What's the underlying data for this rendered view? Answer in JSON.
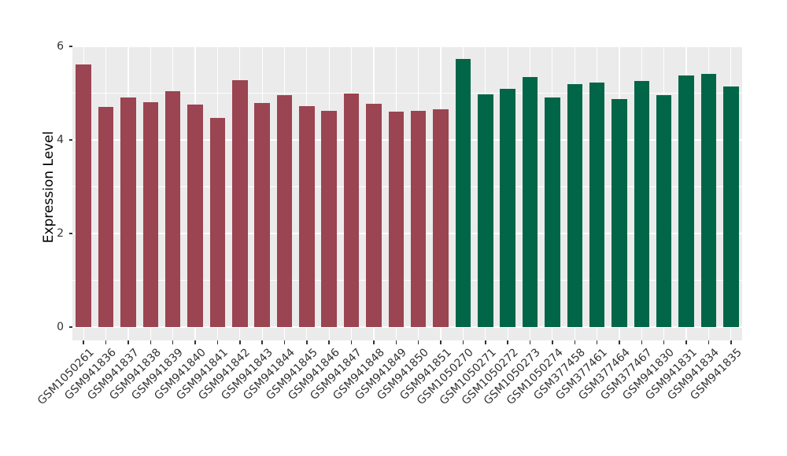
{
  "colors": {
    "background": "#FFFFFF",
    "panel_background": "#EBEBEB",
    "gridline": "#FFFFFF",
    "tick_mark": "#333333",
    "tick_label_color": "#333333",
    "axis_title_color": "#000000",
    "group_colors": {
      "red": "#9B4452",
      "green": "#016648"
    }
  },
  "chart_data": {
    "type": "bar",
    "title": "",
    "xlabel": "",
    "ylabel": "Expression Level",
    "ylim": [
      0,
      6
    ],
    "yticks": [
      0,
      2,
      4,
      6
    ],
    "yticks_minor": [
      1,
      3,
      5
    ],
    "grid": true,
    "legend_position": "none",
    "x_label_rotation_deg": 45,
    "categories": [
      "GSM1050261",
      "GSM941836",
      "GSM941837",
      "GSM941838",
      "GSM941839",
      "GSM941840",
      "GSM941841",
      "GSM941842",
      "GSM941843",
      "GSM941844",
      "GSM941845",
      "GSM941846",
      "GSM941847",
      "GSM941848",
      "GSM941849",
      "GSM941850",
      "GSM941851",
      "GSM1050270",
      "GSM1050271",
      "GSM1050272",
      "GSM1050273",
      "GSM1050274",
      "GSM377458",
      "GSM377461",
      "GSM377464",
      "GSM377467",
      "GSM941830",
      "GSM941831",
      "GSM941834",
      "GSM941835"
    ],
    "bars": [
      {
        "label": "GSM1050261",
        "value": 5.61,
        "group": "red"
      },
      {
        "label": "GSM941836",
        "value": 4.7,
        "group": "red"
      },
      {
        "label": "GSM941837",
        "value": 4.9,
        "group": "red"
      },
      {
        "label": "GSM941838",
        "value": 4.81,
        "group": "red"
      },
      {
        "label": "GSM941839",
        "value": 5.04,
        "group": "red"
      },
      {
        "label": "GSM941840",
        "value": 4.76,
        "group": "red"
      },
      {
        "label": "GSM941841",
        "value": 4.47,
        "group": "red"
      },
      {
        "label": "GSM941842",
        "value": 5.28,
        "group": "red"
      },
      {
        "label": "GSM941843",
        "value": 4.79,
        "group": "red"
      },
      {
        "label": "GSM941844",
        "value": 4.95,
        "group": "red"
      },
      {
        "label": "GSM941845",
        "value": 4.72,
        "group": "red"
      },
      {
        "label": "GSM941846",
        "value": 4.62,
        "group": "red"
      },
      {
        "label": "GSM941847",
        "value": 4.99,
        "group": "red"
      },
      {
        "label": "GSM941848",
        "value": 4.78,
        "group": "red"
      },
      {
        "label": "GSM941849",
        "value": 4.6,
        "group": "red"
      },
      {
        "label": "GSM941850",
        "value": 4.63,
        "group": "red"
      },
      {
        "label": "GSM941851",
        "value": 4.65,
        "group": "red"
      },
      {
        "label": "GSM1050270",
        "value": 5.73,
        "group": "green"
      },
      {
        "label": "GSM1050271",
        "value": 4.98,
        "group": "green"
      },
      {
        "label": "GSM1050272",
        "value": 5.1,
        "group": "green"
      },
      {
        "label": "GSM1050273",
        "value": 5.34,
        "group": "green"
      },
      {
        "label": "GSM1050274",
        "value": 4.91,
        "group": "green"
      },
      {
        "label": "GSM377458",
        "value": 5.19,
        "group": "green"
      },
      {
        "label": "GSM377461",
        "value": 5.22,
        "group": "green"
      },
      {
        "label": "GSM377464",
        "value": 4.88,
        "group": "green"
      },
      {
        "label": "GSM377467",
        "value": 5.26,
        "group": "green"
      },
      {
        "label": "GSM941830",
        "value": 4.95,
        "group": "green"
      },
      {
        "label": "GSM941831",
        "value": 5.37,
        "group": "green"
      },
      {
        "label": "GSM941834",
        "value": 5.41,
        "group": "green"
      },
      {
        "label": "GSM941835",
        "value": 5.14,
        "group": "green"
      }
    ]
  }
}
